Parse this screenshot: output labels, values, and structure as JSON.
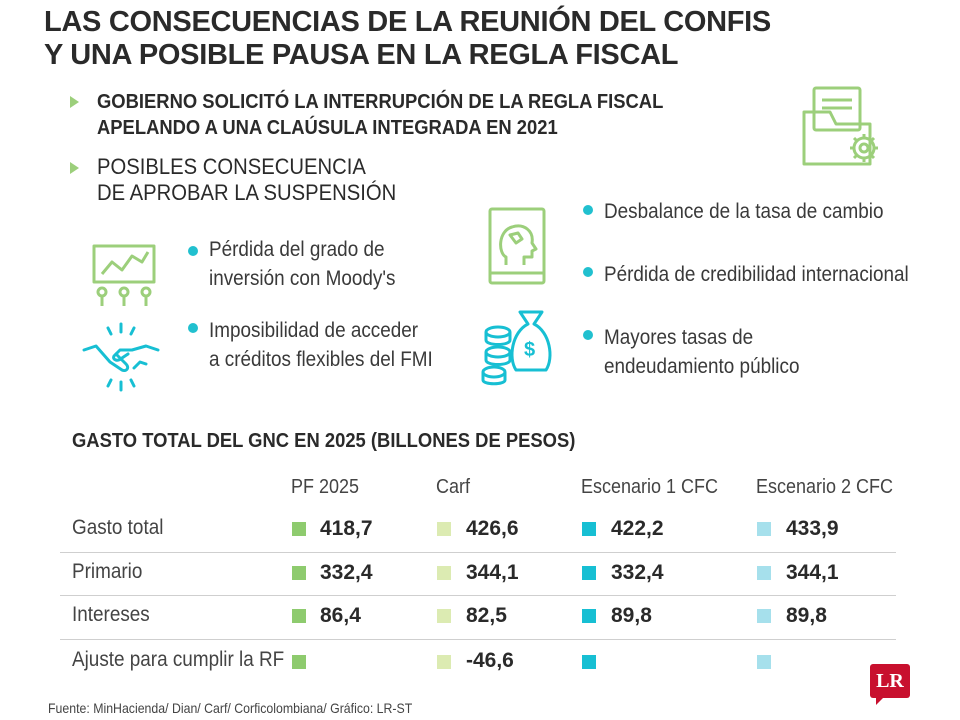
{
  "title": {
    "line1": "LAS CONSECUENCIAS DE LA REUNIÓN DEL CONFIS",
    "line2": "Y UNA POSIBLE PAUSA EN LA REGLA FISCAL"
  },
  "highlights": [
    {
      "line1": "GOBIERNO SOLICITÓ LA INTERRUPCIÓN DE LA REGLA FISCAL",
      "line2": "APELANDO A UNA CLAÚSULA INTEGRADA EN 2021"
    },
    {
      "line1": "POSIBLES CONSECUENCIA",
      "line2": "DE APROBAR LA SUSPENSIÓN"
    }
  ],
  "consequences": {
    "left": [
      {
        "line1": "Pérdida del grado de",
        "line2": "inversión con Moody's",
        "icon": "chart-presentation-icon"
      },
      {
        "line1": "Imposibilidad de acceder",
        "line2": "a créditos flexibles del FMI",
        "icon": "handshake-icon"
      }
    ],
    "right": [
      {
        "line1": "Desbalance de la tasa de cambio",
        "line2": "",
        "icon": "head-book-icon"
      },
      {
        "line1": "Pérdida de credibilidad internacional",
        "line2": ""
      },
      {
        "line1": "Mayores tasas de",
        "line2": "endeudamiento público",
        "icon": "money-bag-coins-icon"
      }
    ]
  },
  "table": {
    "title": "GASTO TOTAL DEL GNC EN 2025 (BILLONES DE PESOS)",
    "columns": [
      {
        "label": "PF 2025",
        "color": "#8ecb6e"
      },
      {
        "label": "Carf",
        "color": "#dcebb2"
      },
      {
        "label": "Escenario 1 CFC",
        "color": "#17bfd3"
      },
      {
        "label": "Escenario 2 CFC",
        "color": "#a6e0ec"
      }
    ],
    "rows": [
      {
        "label": "Gasto total",
        "values": [
          "418,7",
          "426,6",
          "422,2",
          "433,9"
        ]
      },
      {
        "label": "Primario",
        "values": [
          "332,4",
          "344,1",
          "332,4",
          "344,1"
        ]
      },
      {
        "label": "Intereses",
        "values": [
          "86,4",
          "82,5",
          "89,8",
          "89,8"
        ]
      },
      {
        "label": "Ajuste para cumplir la RF",
        "values": [
          "",
          "-46,6",
          "",
          ""
        ]
      }
    ]
  },
  "source": "Fuente: MinHacienda/ Dian/ Carf/ Corficolombiana/ Gráfico: LR-ST",
  "logo": "LR",
  "colors": {
    "accent_green": "#9ccf7b",
    "bullet_teal": "#21c0cf",
    "logo_red": "#c8102e"
  }
}
